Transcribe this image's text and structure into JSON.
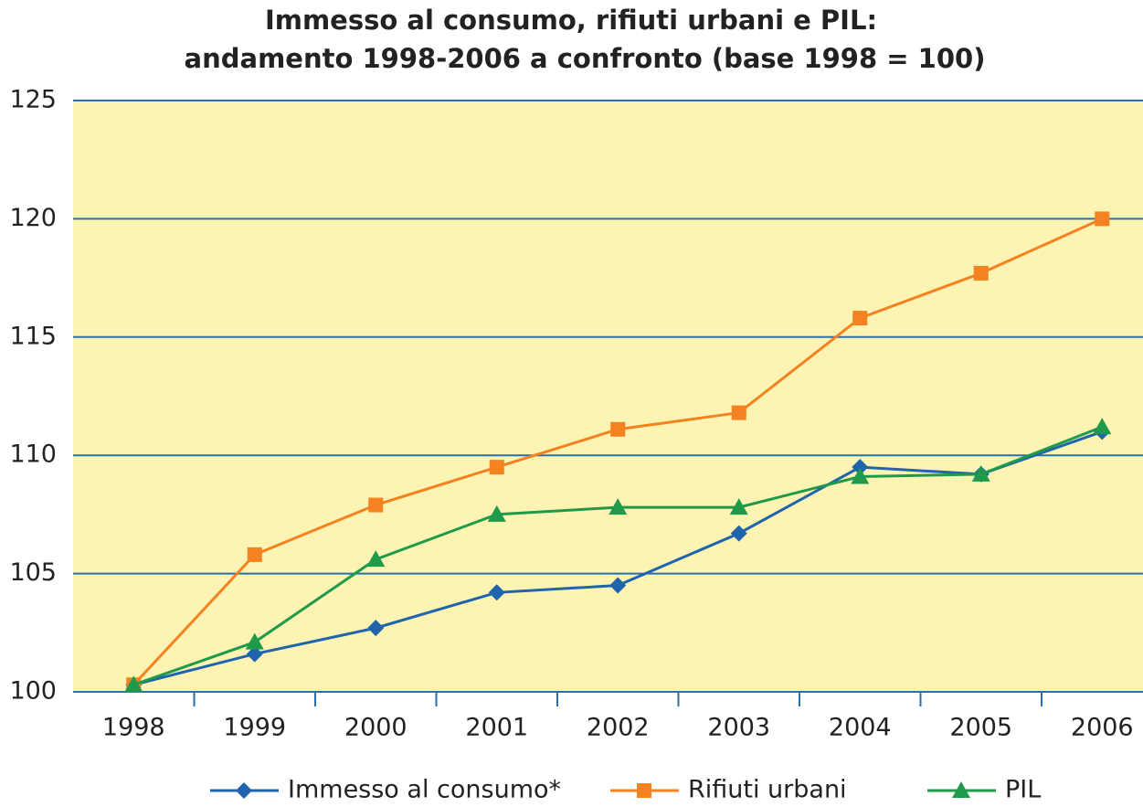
{
  "chart_data": {
    "type": "line",
    "title": [
      "Immesso al consumo, rifiuti urbani e PIL:",
      "andamento 1998-2006 a  confronto (base 1998 = 100)"
    ],
    "categories": [
      "1998",
      "1999",
      "2000",
      "2001",
      "2002",
      "2003",
      "2004",
      "2005",
      "2006"
    ],
    "series": [
      {
        "name": "Immesso al consumo*",
        "color": "#1f64ad",
        "marker": "diamond",
        "values": [
          100.3,
          101.6,
          102.7,
          104.2,
          104.5,
          106.7,
          109.5,
          109.2,
          111.0
        ]
      },
      {
        "name": "Rifiuti urbani",
        "color": "#f58220",
        "marker": "square",
        "values": [
          100.3,
          105.8,
          107.9,
          109.5,
          111.1,
          111.8,
          115.8,
          117.7,
          120.0
        ]
      },
      {
        "name": "PIL",
        "color": "#1e9a4a",
        "marker": "triangle",
        "values": [
          100.3,
          102.1,
          105.6,
          107.5,
          107.8,
          107.8,
          109.1,
          109.2,
          111.2
        ]
      }
    ],
    "ylim": [
      100,
      125
    ],
    "yticks": [
      100,
      105,
      110,
      115,
      120,
      125
    ],
    "grid": true,
    "legend": "bottom",
    "background": "#fdf4b3"
  }
}
